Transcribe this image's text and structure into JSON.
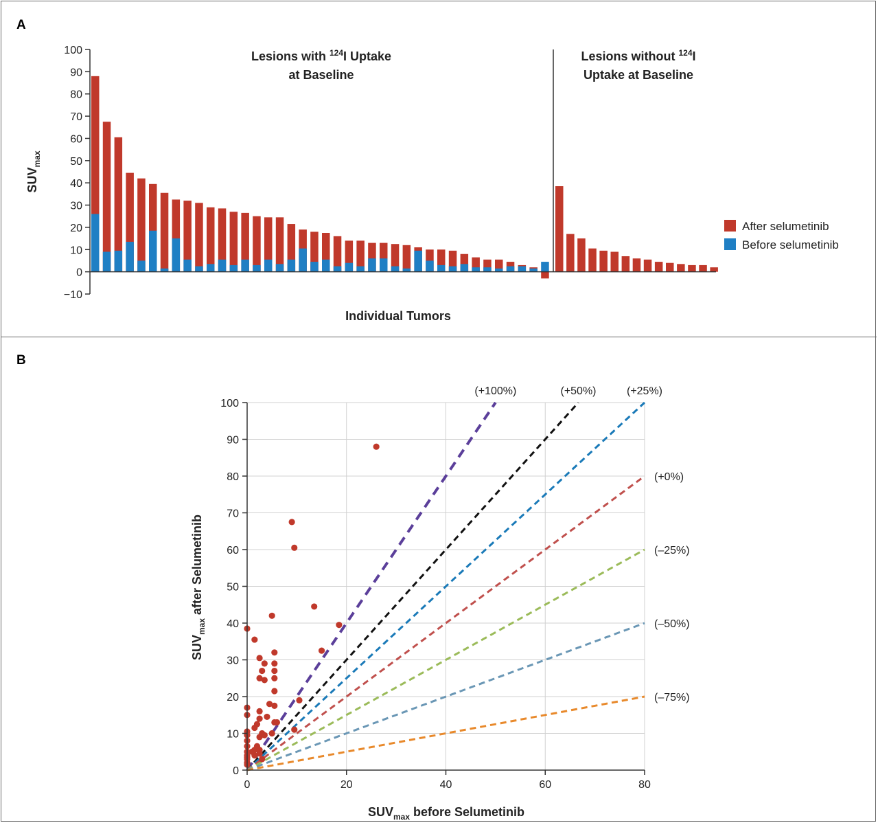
{
  "panel_a": {
    "letter": "A",
    "legend": [
      {
        "label": "After selumetinib",
        "color": "#c0392b"
      },
      {
        "label": "Before selumetinib",
        "color": "#1f7fc4"
      }
    ],
    "section_left": {
      "line1_pre": "Lesions with ",
      "sup": "124",
      "line1_post": "I Uptake",
      "line2": "at Baseline"
    },
    "section_right": {
      "line1_pre": "Lesions without ",
      "sup": "124",
      "line1_post": "I",
      "line2": "Uptake at Baseline"
    }
  },
  "panel_b": {
    "letter": "B"
  },
  "colors": {
    "after": "#c0392b",
    "before": "#1f7fc4",
    "dot": "#c0392b"
  },
  "chart_data": [
    {
      "type": "bar",
      "xlabel": "Individual Tumors",
      "ylabel_main": "SUV",
      "ylabel_sub": "max",
      "ylim": [
        -10,
        100
      ],
      "yticks": [
        -10,
        0,
        10,
        20,
        30,
        40,
        50,
        60,
        70,
        80,
        90,
        100
      ],
      "series": [
        {
          "name": "After selumetinib",
          "values": [
            88,
            67.5,
            60.5,
            44.5,
            42,
            39.5,
            35.5,
            32.5,
            32,
            31,
            29,
            28.5,
            27,
            26.5,
            25,
            24.5,
            24.5,
            21.5,
            19,
            18,
            17.5,
            16,
            14,
            14,
            13,
            13,
            12.5,
            12,
            11,
            10,
            10,
            9.5,
            8,
            6.5,
            5.5,
            5.5,
            4.5,
            3,
            2,
            -3
          ]
        },
        {
          "name": "Before selumetinib",
          "values": [
            26,
            9,
            9.5,
            13.5,
            5,
            18.5,
            1.5,
            15,
            5.5,
            2.5,
            3.5,
            5.5,
            3,
            5.5,
            3,
            5.5,
            3.5,
            5.5,
            10.5,
            4.5,
            5.5,
            2.5,
            4,
            2.5,
            6,
            6,
            2.5,
            1.5,
            9.5,
            5,
            3,
            2.5,
            3.5,
            2,
            2,
            1.5,
            2.5,
            2.5,
            1.5,
            4.5
          ]
        }
      ],
      "without_uptake_after": [
        38.5,
        17,
        15,
        10.5,
        9.5,
        9,
        7,
        6,
        5.5,
        4.5,
        4,
        3.5,
        3,
        3,
        2
      ]
    },
    {
      "type": "scatter",
      "xlabel_main": "SUV",
      "xlabel_sub": "max",
      "xlabel_post": " before Selumetinib",
      "ylabel_main": "SUV",
      "ylabel_sub": "max",
      "ylabel_post": " after Selumetinib",
      "xlim": [
        0,
        80
      ],
      "ylim": [
        0,
        100
      ],
      "xticks": [
        0,
        20,
        40,
        60,
        80
      ],
      "yticks": [
        0,
        10,
        20,
        30,
        40,
        50,
        60,
        70,
        80,
        90,
        100
      ],
      "reference_lines": [
        {
          "label": "(+100%)",
          "slope": 2.0,
          "color": "#5b3f9a"
        },
        {
          "label": "(+50%)",
          "slope": 1.5,
          "color": "#111111"
        },
        {
          "label": "(+25%)",
          "slope": 1.25,
          "color": "#1a7ab8"
        },
        {
          "label": "(+0%)",
          "slope": 1.0,
          "color": "#c0504d"
        },
        {
          "label": "(–25%)",
          "slope": 0.75,
          "color": "#9bbb59"
        },
        {
          "label": "(–50%)",
          "slope": 0.5,
          "color": "#6a97b5"
        },
        {
          "label": "(–75%)",
          "slope": 0.25,
          "color": "#e8892b"
        }
      ],
      "points": [
        [
          26,
          88
        ],
        [
          9,
          67.5
        ],
        [
          9.5,
          60.5
        ],
        [
          13.5,
          44.5
        ],
        [
          5,
          42
        ],
        [
          18.5,
          39.5
        ],
        [
          1.5,
          35.5
        ],
        [
          15,
          32.5
        ],
        [
          5.5,
          32
        ],
        [
          2.5,
          30.5
        ],
        [
          3.5,
          29
        ],
        [
          5.5,
          29
        ],
        [
          3,
          27
        ],
        [
          5.5,
          27
        ],
        [
          2.5,
          25
        ],
        [
          5.5,
          25
        ],
        [
          3.5,
          24.5
        ],
        [
          5.5,
          21.5
        ],
        [
          10.5,
          19
        ],
        [
          0,
          38.5
        ],
        [
          0,
          17
        ],
        [
          4.5,
          18
        ],
        [
          5.5,
          17.5
        ],
        [
          0,
          15
        ],
        [
          2.5,
          16
        ],
        [
          4,
          14.5
        ],
        [
          6,
          13
        ],
        [
          2.5,
          14
        ],
        [
          5.5,
          13
        ],
        [
          2,
          12.5
        ],
        [
          1.5,
          11.5
        ],
        [
          9.5,
          11
        ],
        [
          0,
          10.5
        ],
        [
          3,
          10
        ],
        [
          5,
          10
        ],
        [
          0,
          9.5
        ],
        [
          3.5,
          9.5
        ],
        [
          2.5,
          9
        ],
        [
          0,
          8
        ],
        [
          0,
          6.5
        ],
        [
          2,
          6.5
        ],
        [
          1.5,
          5.5
        ],
        [
          2.5,
          5.5
        ],
        [
          0,
          5
        ],
        [
          1,
          5
        ],
        [
          2.5,
          4.5
        ],
        [
          0,
          4
        ],
        [
          1.5,
          4
        ],
        [
          0,
          3.5
        ],
        [
          0,
          3
        ],
        [
          3,
          3
        ],
        [
          0,
          2
        ],
        [
          0,
          1.5
        ],
        [
          4.5,
          -3
        ]
      ]
    }
  ]
}
